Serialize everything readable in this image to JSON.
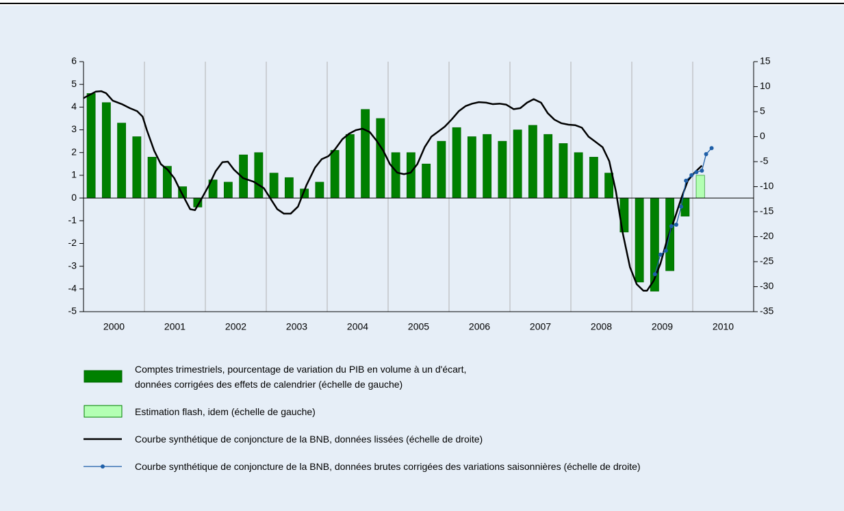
{
  "chart_data": {
    "type": "combo",
    "xlim": [
      2000,
      2011
    ],
    "xticks": [
      {
        "value": 2000.5,
        "label": "2000"
      },
      {
        "value": 2001.5,
        "label": "2001"
      },
      {
        "value": 2002.5,
        "label": "2002"
      },
      {
        "value": 2003.5,
        "label": "2003"
      },
      {
        "value": 2004.5,
        "label": "2004"
      },
      {
        "value": 2005.5,
        "label": "2005"
      },
      {
        "value": 2006.5,
        "label": "2006"
      },
      {
        "value": 2007.5,
        "label": "2007"
      },
      {
        "value": 2008.5,
        "label": "2008"
      },
      {
        "value": 2009.5,
        "label": "2009"
      },
      {
        "value": 2010.5,
        "label": "2010"
      }
    ],
    "ylim": [
      -5,
      6
    ],
    "yticks": [
      -5,
      -4,
      -3,
      -2,
      -1,
      0,
      1,
      2,
      3,
      4,
      5,
      6
    ],
    "y2lim": [
      -35,
      15
    ],
    "y2ticks": [
      -35,
      -30,
      -25,
      -20,
      -15,
      -10,
      -5,
      0,
      5,
      10,
      15
    ],
    "grid": true,
    "series": [
      {
        "name": "Comptes trimestriels, pourcentage de variation du PIB en volume à un d'écart,\ndonnées corrigées des effets de calendrier (échelle de gauche)",
        "type": "bar",
        "color": "#008000",
        "x": [
          2000.125,
          2000.375,
          2000.625,
          2000.875,
          2001.125,
          2001.375,
          2001.625,
          2001.875,
          2002.125,
          2002.375,
          2002.625,
          2002.875,
          2003.125,
          2003.375,
          2003.625,
          2003.875,
          2004.125,
          2004.375,
          2004.625,
          2004.875,
          2005.125,
          2005.375,
          2005.625,
          2005.875,
          2006.125,
          2006.375,
          2006.625,
          2006.875,
          2007.125,
          2007.375,
          2007.625,
          2007.875,
          2008.125,
          2008.375,
          2008.625,
          2008.875,
          2009.125,
          2009.375,
          2009.625,
          2009.875
        ],
        "values": [
          4.6,
          4.2,
          3.3,
          2.7,
          1.8,
          1.4,
          0.5,
          -0.4,
          0.8,
          0.7,
          1.9,
          2.0,
          1.1,
          0.9,
          0.4,
          0.7,
          2.1,
          2.8,
          3.9,
          3.5,
          2.0,
          2.0,
          1.5,
          2.5,
          3.1,
          2.7,
          2.8,
          2.5,
          3.0,
          3.2,
          2.8,
          2.4,
          2.0,
          1.8,
          1.1,
          -1.5,
          -3.7,
          -4.1,
          -3.2,
          -0.8
        ]
      },
      {
        "name": "Estimation flash, idem (échelle de gauche)",
        "type": "bar",
        "color": "#b3ffb3",
        "x": [
          2010.125
        ],
        "values": [
          1.0
        ]
      },
      {
        "name": "Courbe synthétique de conjoncture de la BNB, données lissées (échelle de droite)",
        "type": "line",
        "axis": "y2",
        "color": "#000000",
        "x": [
          2000.0,
          2000.09,
          2000.2,
          2000.29,
          2000.37,
          2000.48,
          2000.63,
          2000.76,
          2000.88,
          2000.97,
          2001.04,
          2001.16,
          2001.27,
          2001.38,
          2001.49,
          2001.57,
          2001.66,
          2001.75,
          2001.83,
          2001.92,
          2002.06,
          2002.17,
          2002.28,
          2002.37,
          2002.47,
          2002.62,
          2002.79,
          2002.96,
          2003.07,
          2003.18,
          2003.29,
          2003.4,
          2003.52,
          2003.66,
          2003.8,
          2003.91,
          2004.02,
          2004.13,
          2004.25,
          2004.36,
          2004.47,
          2004.58,
          2004.7,
          2004.81,
          2004.92,
          2005.03,
          2005.15,
          2005.26,
          2005.37,
          2005.48,
          2005.6,
          2005.71,
          2005.82,
          2005.93,
          2006.04,
          2006.16,
          2006.27,
          2006.38,
          2006.49,
          2006.61,
          2006.72,
          2006.83,
          2006.94,
          2007.06,
          2007.17,
          2007.28,
          2007.39,
          2007.51,
          2007.62,
          2007.73,
          2007.84,
          2007.96,
          2008.07,
          2008.18,
          2008.29,
          2008.4,
          2008.52,
          2008.63,
          2008.74,
          2008.85,
          2008.97,
          2009.08,
          2009.19,
          2009.25,
          2009.36,
          2009.47,
          2009.58,
          2009.7,
          2009.81,
          2009.92,
          2010.03,
          2010.15
        ],
        "values": [
          7.7,
          8.3,
          9.0,
          9.1,
          8.7,
          7.2,
          6.5,
          5.7,
          5.1,
          4.0,
          1.3,
          -2.8,
          -5.5,
          -6.6,
          -8.3,
          -10.3,
          -12.4,
          -14.5,
          -14.7,
          -12.8,
          -9.7,
          -6.9,
          -5.1,
          -5.0,
          -6.6,
          -8.3,
          -9.0,
          -10.3,
          -12.4,
          -14.5,
          -15.4,
          -15.4,
          -14.0,
          -9.7,
          -6.2,
          -4.5,
          -3.9,
          -2.5,
          -0.5,
          0.6,
          1.3,
          1.6,
          0.9,
          -0.8,
          -2.8,
          -5.5,
          -7.2,
          -7.5,
          -7.2,
          -5.5,
          -2.1,
          0.0,
          1.0,
          2.0,
          3.4,
          5.1,
          6.1,
          6.6,
          6.9,
          6.8,
          6.5,
          6.6,
          6.4,
          5.5,
          5.7,
          6.8,
          7.5,
          6.8,
          4.7,
          3.4,
          2.7,
          2.4,
          2.3,
          1.8,
          0.0,
          -1.0,
          -2.1,
          -4.9,
          -11.0,
          -19.2,
          -26.1,
          -29.5,
          -30.8,
          -30.8,
          -28.8,
          -25.4,
          -20.6,
          -16.5,
          -12.4,
          -8.8,
          -7.2,
          -5.8
        ]
      },
      {
        "name": "Courbe synthétique de conjoncture de la BNB, données brutes corrigées des variations saisonnières (échelle de droite)",
        "type": "line",
        "axis": "y2",
        "color": "#1f5fa8",
        "markers": true,
        "x": [
          2009.38,
          2009.47,
          2009.56,
          2009.65,
          2009.73,
          2009.81,
          2009.89,
          2009.98,
          2010.06,
          2010.15,
          2010.22,
          2010.31
        ],
        "values": [
          -27.5,
          -23.6,
          -22.8,
          -17.9,
          -17.6,
          -14.0,
          -8.8,
          -7.7,
          -7.1,
          -6.8,
          -3.5,
          -2.3
        ]
      }
    ]
  }
}
